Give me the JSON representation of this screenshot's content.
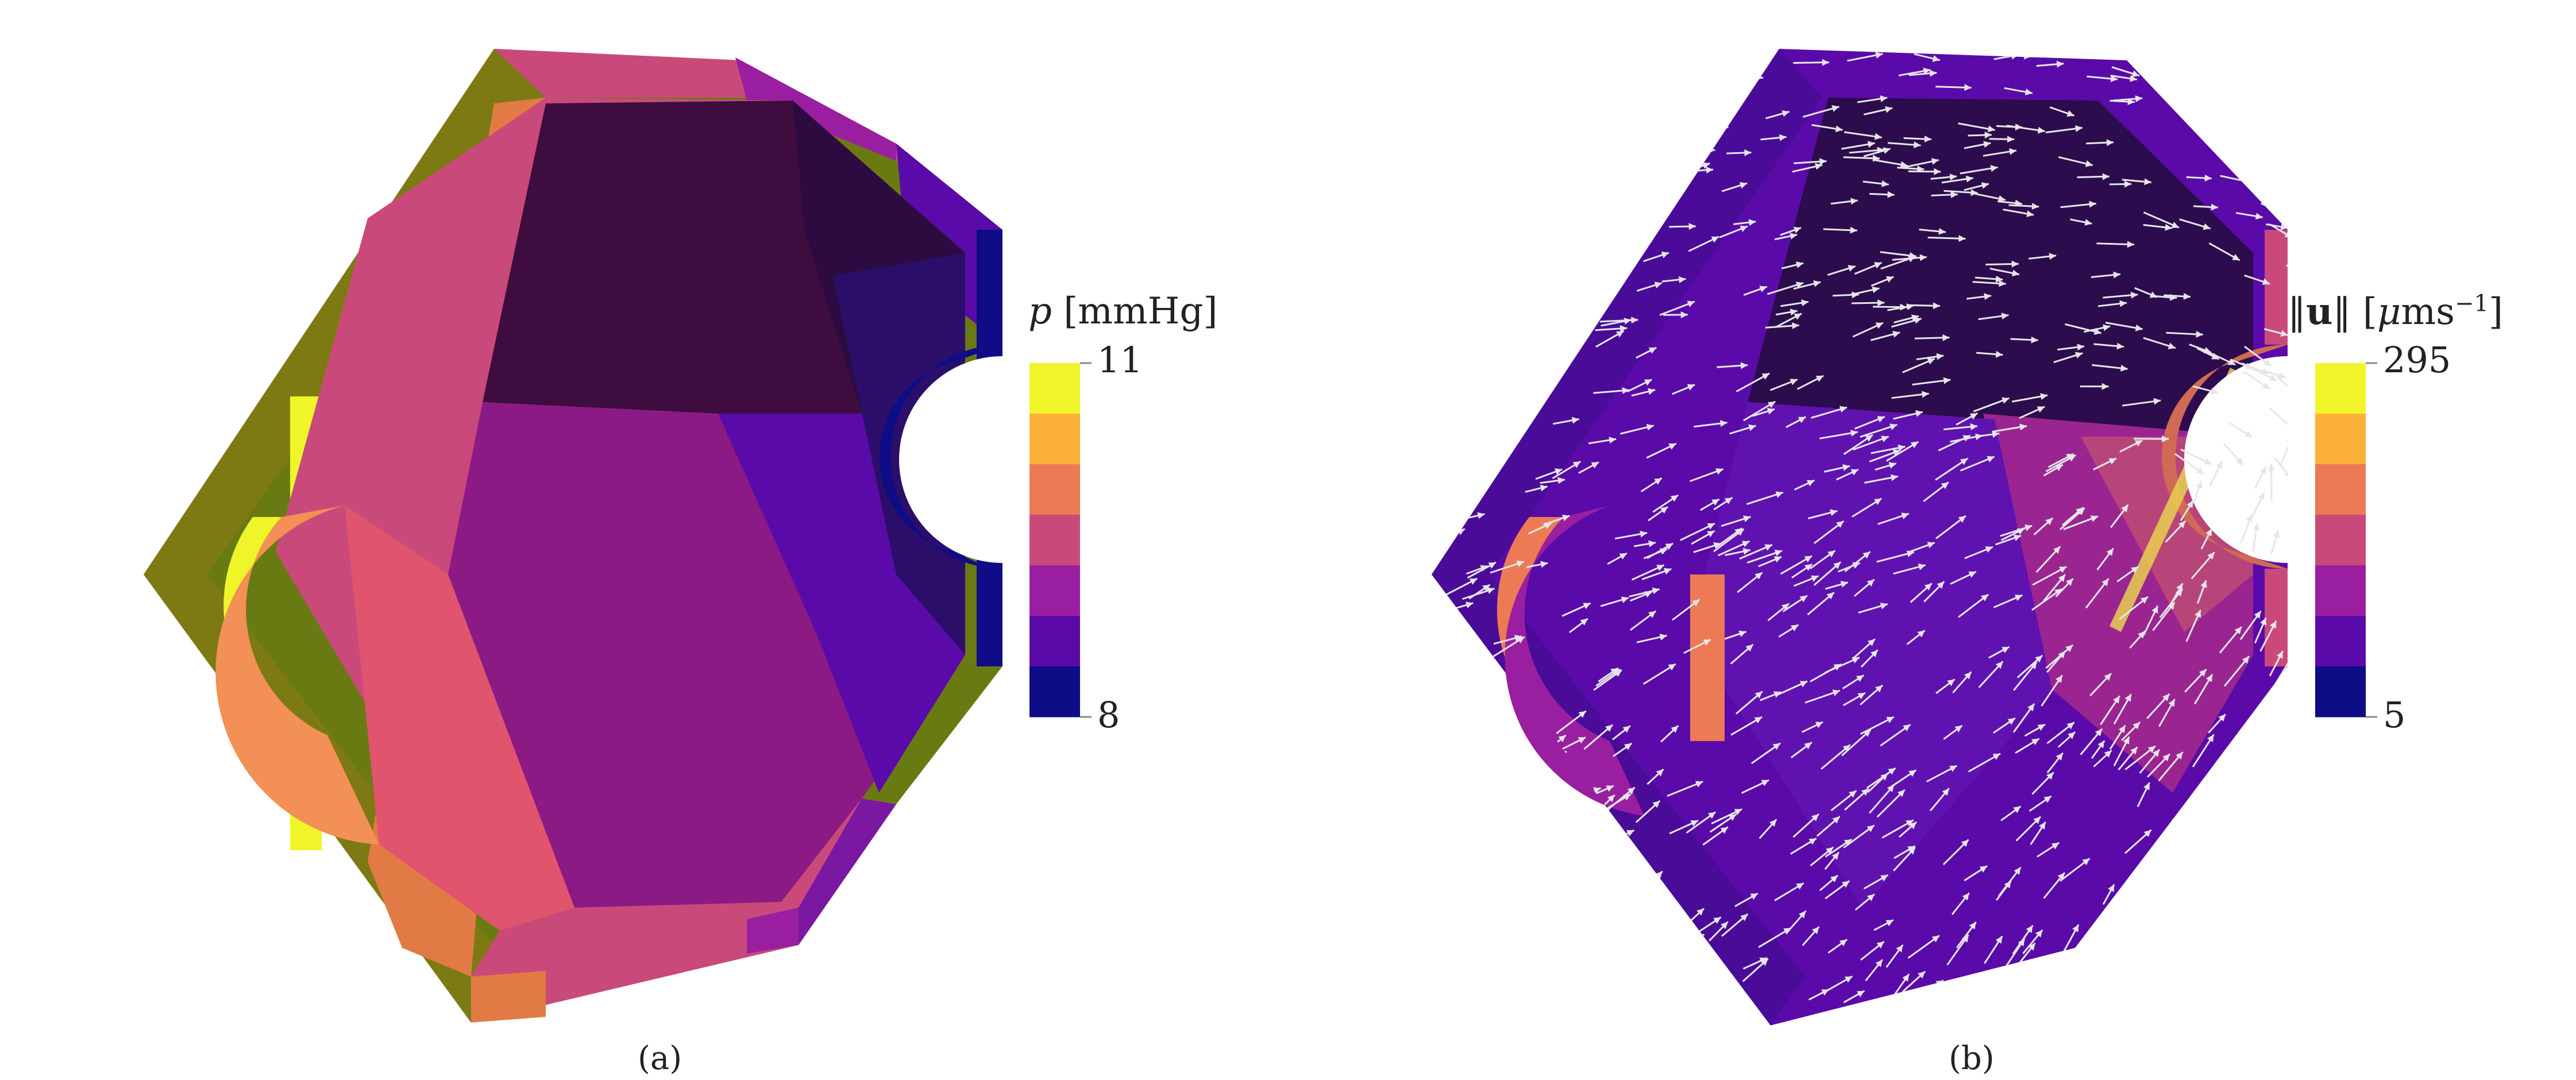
{
  "panel_a": {
    "caption": "(a)",
    "legend": {
      "title_symbol": "p",
      "title_unit": "[mmHg]",
      "max_label": "11",
      "min_label": "8",
      "colors": [
        "#f0f52a",
        "#fbb03a",
        "#ec7a55",
        "#c94a7a",
        "#9a1fa0",
        "#5a0aa8",
        "#0e0c86"
      ]
    }
  },
  "panel_b": {
    "caption": "(b)",
    "legend": {
      "title_prefix": "‖",
      "title_symbol": "u",
      "title_mid": "‖ [",
      "title_mu": "μ",
      "title_unit": "ms",
      "title_exp": "−1",
      "title_end": "]",
      "max_label": "295",
      "min_label": "5",
      "colors": [
        "#f0f52a",
        "#fbb03a",
        "#ec7a55",
        "#c94a7a",
        "#9a1fa0",
        "#5a0aa8",
        "#0e0c86"
      ]
    }
  }
}
